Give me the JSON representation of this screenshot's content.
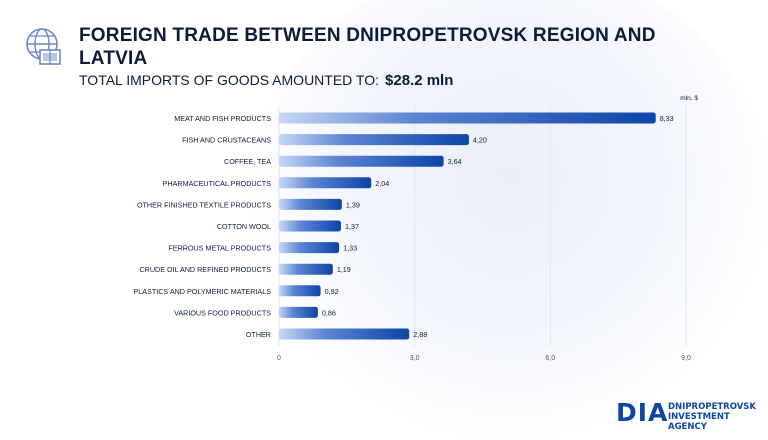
{
  "header": {
    "title": "FOREIGN TRADE BETWEEN DNIPROPETROVSK REGION AND LATVIA",
    "subtitle_label": "TOTAL IMPORTS OF GOODS AMOUNTED TO:",
    "subtitle_value": "$28.2 mln"
  },
  "logo": {
    "mark": "DIA",
    "name": "DNIPROPETROVSK\nINVESTMENT AGENCY"
  },
  "icons": {
    "header": "globe-trade-icon"
  },
  "colors": {
    "bar_start": "#c7d7f4",
    "bar_end": "#0b45a8",
    "brand": "#0d47a1",
    "text": "#0c1b3a"
  },
  "chart_data": {
    "type": "bar",
    "orientation": "horizontal",
    "unit_label": "mln, $",
    "categories": [
      "MEAT AND FISH PRODUCTS",
      "FISH AND CRUSTACEANS",
      "COFFEE, TEA",
      "PHARMACEUTICAL PRODUCTS",
      "OTHER FINISHED TEXTILE PRODUCTS",
      "COTTON WOOL",
      "FERROUS METAL PRODUCTS",
      "CRUDE OIL AND REFINED PRODUCTS",
      "PLASTICS AND POLYMERIC MATERIALS",
      "VARIOUS FOOD PRODUCTS",
      "OTHER"
    ],
    "values": [
      8.33,
      4.2,
      3.64,
      2.04,
      1.39,
      1.37,
      1.33,
      1.19,
      0.92,
      0.86,
      2.88
    ],
    "value_labels": [
      "8,33",
      "4,20",
      "3,64",
      "2,04",
      "1,39",
      "1,37",
      "1,33",
      "1,19",
      "0,92",
      "0,86",
      "2,88"
    ],
    "xlim": [
      0,
      9
    ],
    "xticks": [
      0,
      3,
      6,
      9
    ],
    "xtick_labels": [
      "0",
      "3,0",
      "6,0",
      "9,0"
    ],
    "grid": true
  }
}
